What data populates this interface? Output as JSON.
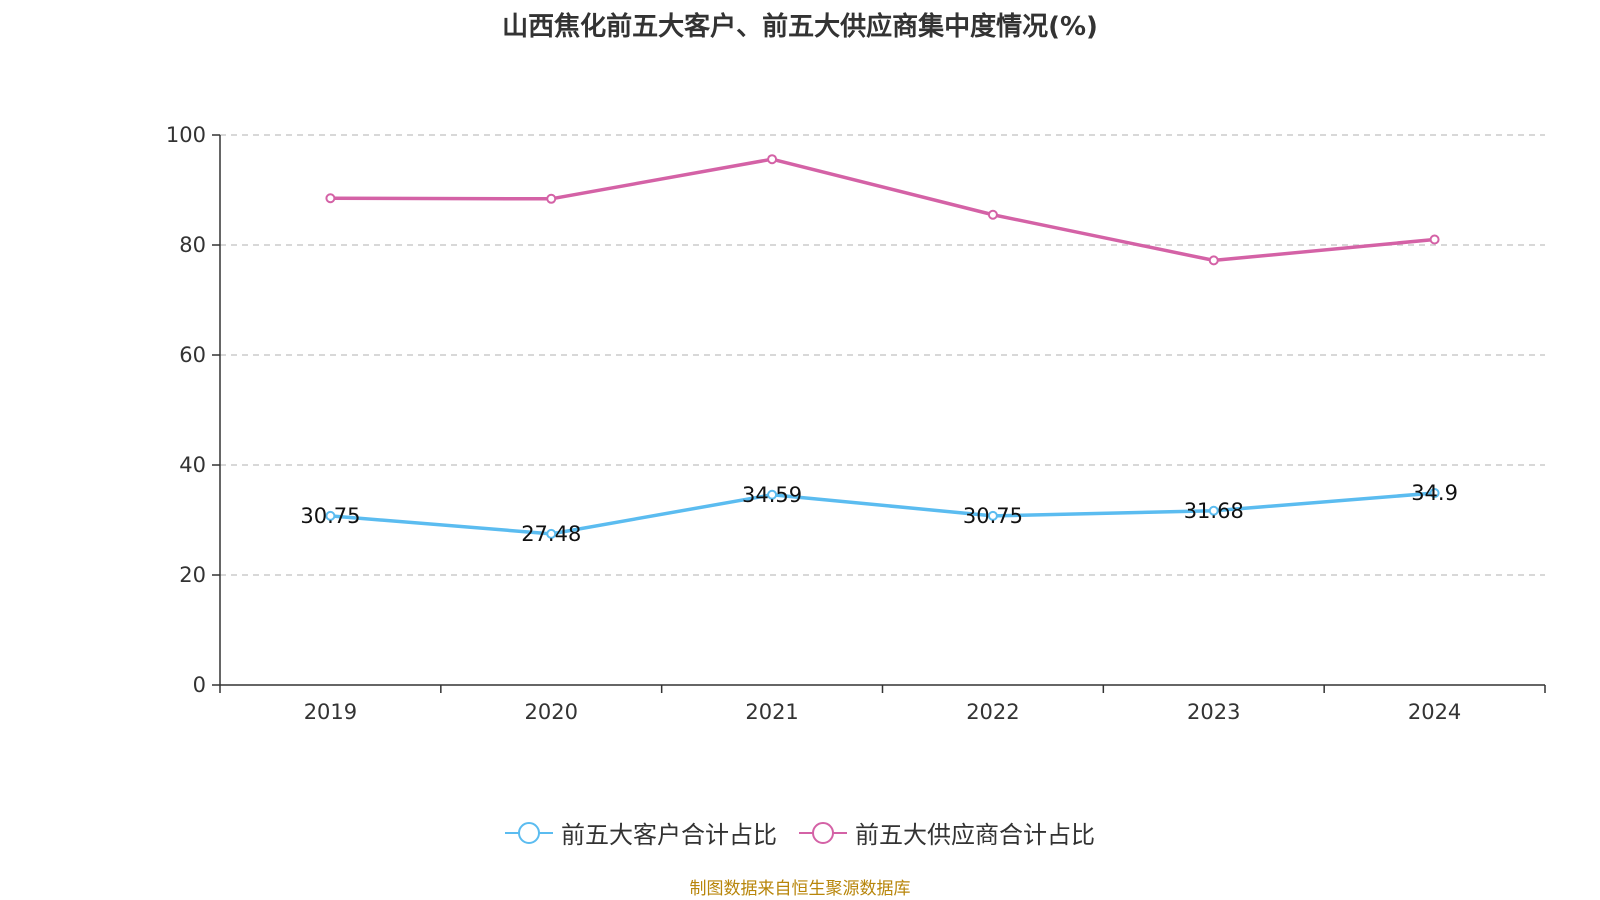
{
  "chart_data": {
    "type": "line",
    "title": "山西焦化前五大客户、前五大供应商集中度情况(%)",
    "categories": [
      "2019",
      "2020",
      "2021",
      "2022",
      "2023",
      "2024"
    ],
    "ylim": [
      0,
      100
    ],
    "yticks": [
      0,
      20,
      40,
      60,
      80,
      100
    ],
    "ytick_labels": [
      "0",
      "20",
      "40",
      "60",
      "80",
      "100"
    ],
    "grid": true,
    "legend_position": "bottom",
    "series": [
      {
        "name": "前五大客户合计占比",
        "color": "#5bbcf0",
        "values": [
          30.75,
          27.48,
          34.59,
          30.75,
          31.68,
          34.9
        ],
        "labels": [
          "30.75",
          "27.48",
          "34.59",
          "30.75",
          "31.68",
          "34.9"
        ],
        "show_labels": true
      },
      {
        "name": "前五大供应商合计占比",
        "color": "#d462a6",
        "values": [
          88.5,
          88.4,
          95.6,
          85.5,
          77.2,
          81.0
        ],
        "show_labels": false
      }
    ]
  },
  "footer": {
    "source": "制图数据来自恒生聚源数据库"
  }
}
